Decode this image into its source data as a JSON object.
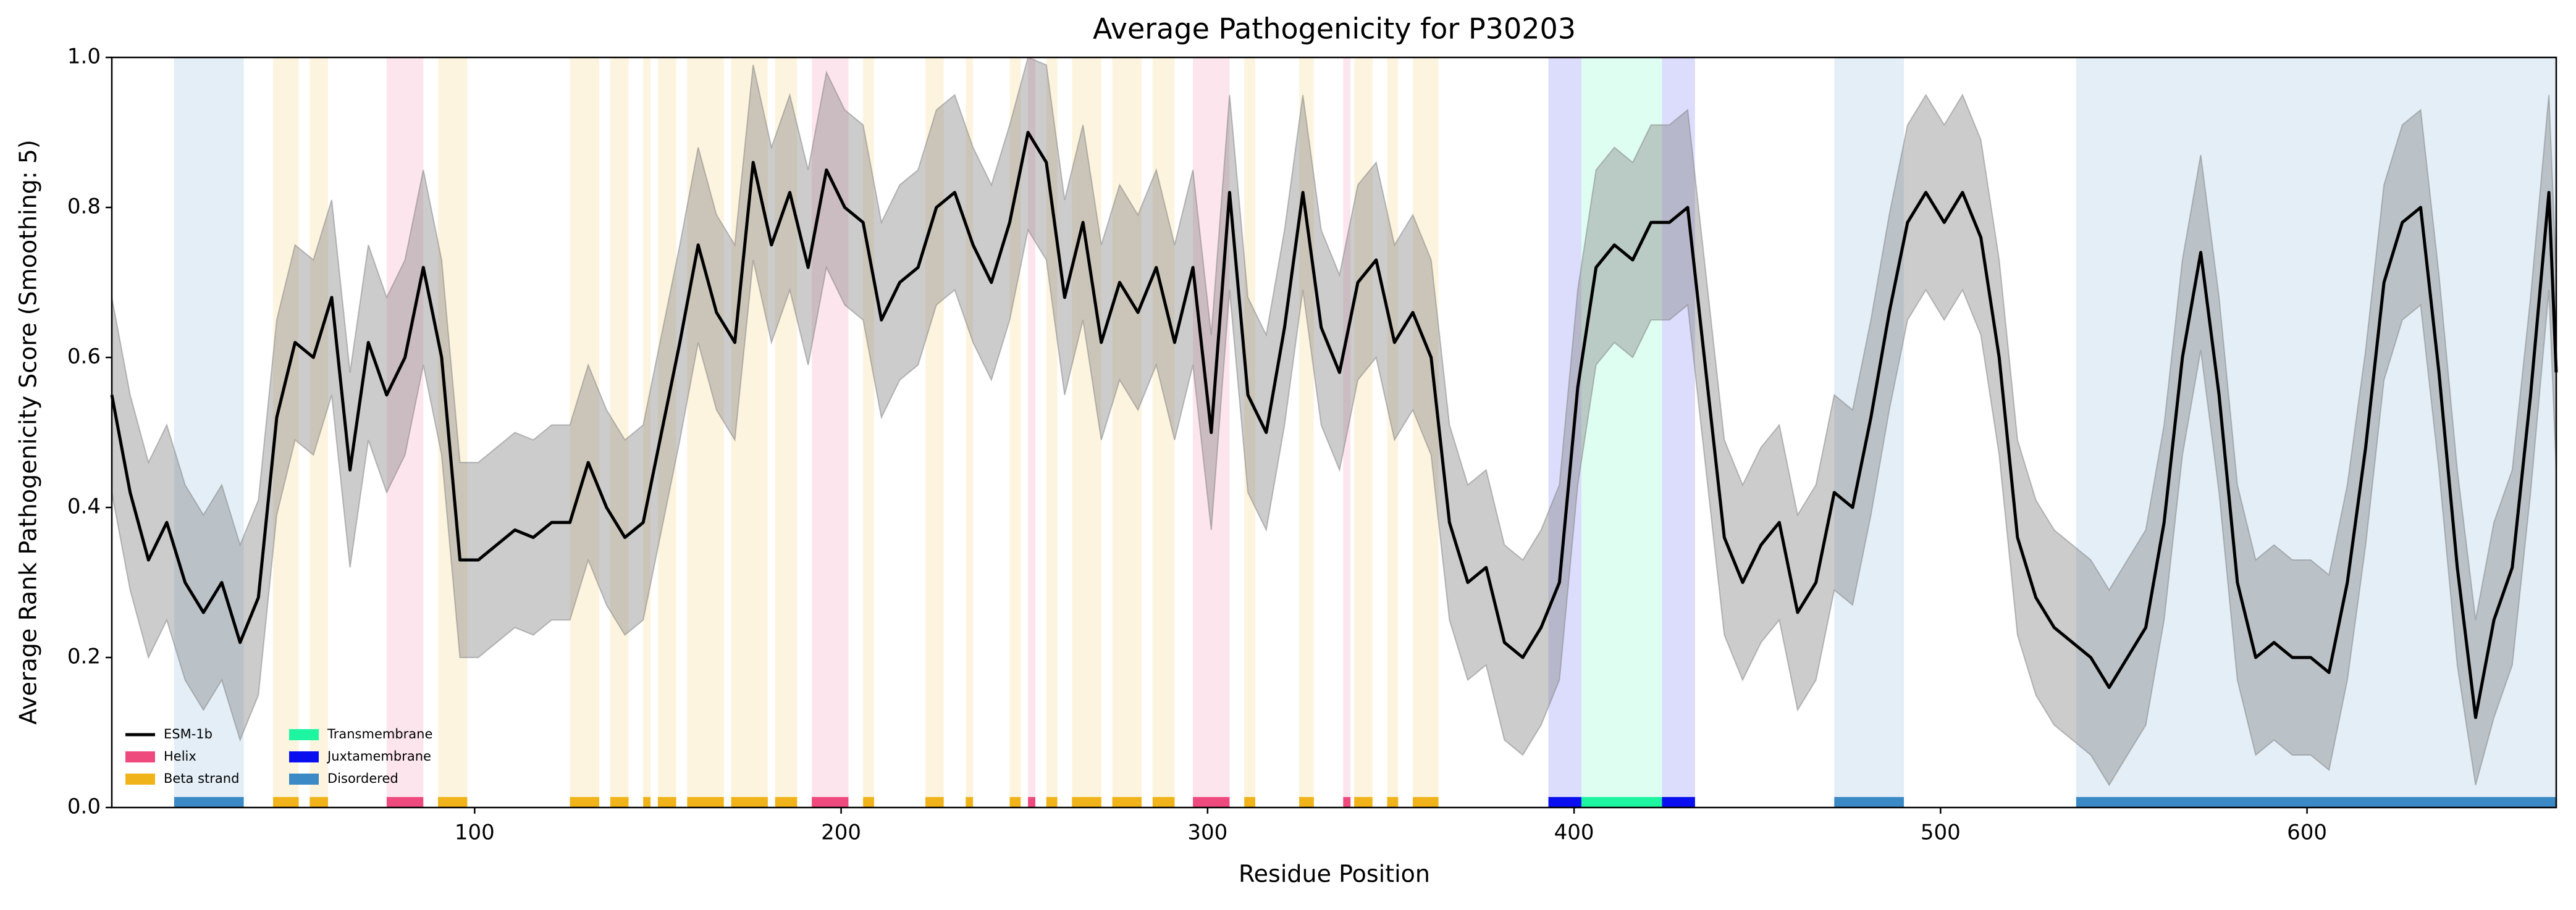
{
  "chart_data": {
    "type": "line",
    "title": "Average Pathogenicity for P30203",
    "x_label": "Residue Position",
    "y_label": "Average Rank Pathogenicity Score (Smoothing: 5)",
    "xlim": [
      1,
      668
    ],
    "ylim": [
      0,
      1
    ],
    "xticks": [
      100,
      200,
      300,
      400,
      500,
      600
    ],
    "yticks": [
      {
        "value": 0,
        "label": "0.0"
      },
      0.2,
      0.4,
      0.6,
      0.8,
      {
        "value": 1,
        "label": "1.0"
      }
    ],
    "legend": "lower left",
    "x": [
      1,
      6,
      11,
      16,
      21,
      26,
      31,
      36,
      41,
      46,
      51,
      56,
      61,
      66,
      71,
      76,
      81,
      86,
      91,
      96,
      101,
      106,
      111,
      116,
      121,
      126,
      131,
      136,
      141,
      146,
      151,
      156,
      161,
      166,
      171,
      176,
      181,
      186,
      191,
      196,
      201,
      206,
      211,
      216,
      221,
      226,
      231,
      236,
      241,
      246,
      251,
      256,
      261,
      266,
      271,
      276,
      281,
      286,
      291,
      296,
      301,
      306,
      311,
      316,
      321,
      326,
      331,
      336,
      341,
      346,
      351,
      356,
      361,
      366,
      371,
      376,
      381,
      386,
      391,
      396,
      401,
      406,
      411,
      416,
      421,
      426,
      431,
      436,
      441,
      446,
      451,
      456,
      461,
      466,
      471,
      476,
      481,
      486,
      491,
      496,
      501,
      506,
      511,
      516,
      521,
      526,
      531,
      536,
      541,
      546,
      551,
      556,
      561,
      566,
      571,
      576,
      581,
      586,
      591,
      596,
      601,
      606,
      611,
      616,
      621,
      626,
      631,
      636,
      641,
      646,
      651,
      656,
      661,
      666,
      668
    ],
    "series": [
      {
        "name": "ESM-1b",
        "color": "#000000",
        "values": [
          0.55,
          0.42,
          0.33,
          0.38,
          0.3,
          0.26,
          0.3,
          0.22,
          0.28,
          0.52,
          0.62,
          0.6,
          0.68,
          0.45,
          0.62,
          0.55,
          0.6,
          0.72,
          0.6,
          0.33,
          0.33,
          0.35,
          0.37,
          0.36,
          0.38,
          0.38,
          0.46,
          0.4,
          0.36,
          0.38,
          0.5,
          0.62,
          0.75,
          0.66,
          0.62,
          0.86,
          0.75,
          0.82,
          0.72,
          0.85,
          0.8,
          0.78,
          0.65,
          0.7,
          0.72,
          0.8,
          0.82,
          0.75,
          0.7,
          0.78,
          0.9,
          0.86,
          0.68,
          0.78,
          0.62,
          0.7,
          0.66,
          0.72,
          0.62,
          0.72,
          0.5,
          0.82,
          0.55,
          0.5,
          0.64,
          0.82,
          0.64,
          0.58,
          0.7,
          0.73,
          0.62,
          0.66,
          0.6,
          0.38,
          0.3,
          0.32,
          0.22,
          0.2,
          0.24,
          0.3,
          0.56,
          0.72,
          0.75,
          0.73,
          0.78,
          0.78,
          0.8,
          0.58,
          0.36,
          0.3,
          0.35,
          0.38,
          0.26,
          0.3,
          0.42,
          0.4,
          0.52,
          0.66,
          0.78,
          0.82,
          0.78,
          0.82,
          0.76,
          0.6,
          0.36,
          0.28,
          0.24,
          0.22,
          0.2,
          0.16,
          0.2,
          0.24,
          0.38,
          0.6,
          0.74,
          0.55,
          0.3,
          0.2,
          0.22,
          0.2,
          0.2,
          0.18,
          0.3,
          0.48,
          0.7,
          0.78,
          0.8,
          0.58,
          0.32,
          0.12,
          0.25,
          0.32,
          0.55,
          0.82,
          0.58
        ],
        "band": {
          "color": "#808080",
          "upper": [
            0.68,
            0.55,
            0.46,
            0.51,
            0.43,
            0.39,
            0.43,
            0.35,
            0.41,
            0.65,
            0.75,
            0.73,
            0.81,
            0.58,
            0.75,
            0.68,
            0.73,
            0.85,
            0.73,
            0.46,
            0.46,
            0.48,
            0.5,
            0.49,
            0.51,
            0.51,
            0.59,
            0.53,
            0.49,
            0.51,
            0.63,
            0.75,
            0.88,
            0.79,
            0.75,
            0.99,
            0.88,
            0.95,
            0.85,
            0.98,
            0.93,
            0.91,
            0.78,
            0.83,
            0.85,
            0.93,
            0.95,
            0.88,
            0.83,
            0.91,
            1.0,
            0.99,
            0.81,
            0.91,
            0.75,
            0.83,
            0.79,
            0.85,
            0.75,
            0.85,
            0.63,
            0.95,
            0.68,
            0.63,
            0.77,
            0.95,
            0.77,
            0.71,
            0.83,
            0.86,
            0.75,
            0.79,
            0.73,
            0.51,
            0.43,
            0.45,
            0.35,
            0.33,
            0.37,
            0.43,
            0.69,
            0.85,
            0.88,
            0.86,
            0.91,
            0.91,
            0.93,
            0.71,
            0.49,
            0.43,
            0.48,
            0.51,
            0.39,
            0.43,
            0.55,
            0.53,
            0.65,
            0.79,
            0.91,
            0.95,
            0.91,
            0.95,
            0.89,
            0.73,
            0.49,
            0.41,
            0.37,
            0.35,
            0.33,
            0.29,
            0.33,
            0.37,
            0.51,
            0.73,
            0.87,
            0.68,
            0.43,
            0.33,
            0.35,
            0.33,
            0.33,
            0.31,
            0.43,
            0.61,
            0.83,
            0.91,
            0.93,
            0.71,
            0.45,
            0.25,
            0.38,
            0.45,
            0.68,
            0.95,
            0.71
          ],
          "lower": [
            0.42,
            0.29,
            0.2,
            0.25,
            0.17,
            0.13,
            0.17,
            0.09,
            0.15,
            0.39,
            0.49,
            0.47,
            0.55,
            0.32,
            0.49,
            0.42,
            0.47,
            0.59,
            0.47,
            0.2,
            0.2,
            0.22,
            0.24,
            0.23,
            0.25,
            0.25,
            0.33,
            0.27,
            0.23,
            0.25,
            0.37,
            0.49,
            0.62,
            0.53,
            0.49,
            0.73,
            0.62,
            0.69,
            0.59,
            0.72,
            0.67,
            0.65,
            0.52,
            0.57,
            0.59,
            0.67,
            0.69,
            0.62,
            0.57,
            0.65,
            0.77,
            0.73,
            0.55,
            0.65,
            0.49,
            0.57,
            0.53,
            0.59,
            0.49,
            0.59,
            0.37,
            0.69,
            0.42,
            0.37,
            0.51,
            0.69,
            0.51,
            0.45,
            0.57,
            0.6,
            0.49,
            0.53,
            0.47,
            0.25,
            0.17,
            0.19,
            0.09,
            0.07,
            0.11,
            0.17,
            0.43,
            0.59,
            0.62,
            0.6,
            0.65,
            0.65,
            0.67,
            0.45,
            0.23,
            0.17,
            0.22,
            0.25,
            0.13,
            0.17,
            0.29,
            0.27,
            0.39,
            0.53,
            0.65,
            0.69,
            0.65,
            0.69,
            0.63,
            0.47,
            0.23,
            0.15,
            0.11,
            0.09,
            0.07,
            0.03,
            0.07,
            0.11,
            0.25,
            0.47,
            0.61,
            0.42,
            0.17,
            0.07,
            0.09,
            0.07,
            0.07,
            0.05,
            0.17,
            0.35,
            0.57,
            0.65,
            0.67,
            0.45,
            0.19,
            0.03,
            0.12,
            0.19,
            0.42,
            0.69,
            0.45
          ]
        }
      }
    ],
    "features": [
      {
        "name": "Helix",
        "color": "#ee4a7e",
        "spans": [
          [
            76,
            86
          ],
          [
            192,
            202
          ],
          [
            251,
            253
          ],
          [
            296,
            306
          ],
          [
            337,
            339
          ]
        ]
      },
      {
        "name": "Beta strand",
        "color": "#f0b41a",
        "spans": [
          [
            45,
            52
          ],
          [
            55,
            60
          ],
          [
            90,
            98
          ],
          [
            126,
            134
          ],
          [
            137,
            142
          ],
          [
            146,
            148
          ],
          [
            150,
            155
          ],
          [
            158,
            168
          ],
          [
            170,
            180
          ],
          [
            182,
            188
          ],
          [
            206,
            209
          ],
          [
            223,
            228
          ],
          [
            234,
            236
          ],
          [
            246,
            249
          ],
          [
            256,
            259
          ],
          [
            263,
            271
          ],
          [
            274,
            282
          ],
          [
            285,
            291
          ],
          [
            310,
            313
          ],
          [
            325,
            329
          ],
          [
            340,
            345
          ],
          [
            349,
            352
          ],
          [
            356,
            363
          ]
        ]
      },
      {
        "name": "Transmembrane",
        "color": "#1df5a0",
        "spans": [
          [
            402,
            424
          ]
        ]
      },
      {
        "name": "Juxtamembrane",
        "color": "#0a0ff0",
        "spans": [
          [
            393,
            402
          ],
          [
            424,
            433
          ]
        ]
      },
      {
        "name": "Disordered",
        "color": "#3b8ac6",
        "spans": [
          [
            18,
            37
          ],
          [
            471,
            490
          ],
          [
            537,
            668
          ]
        ]
      }
    ]
  }
}
